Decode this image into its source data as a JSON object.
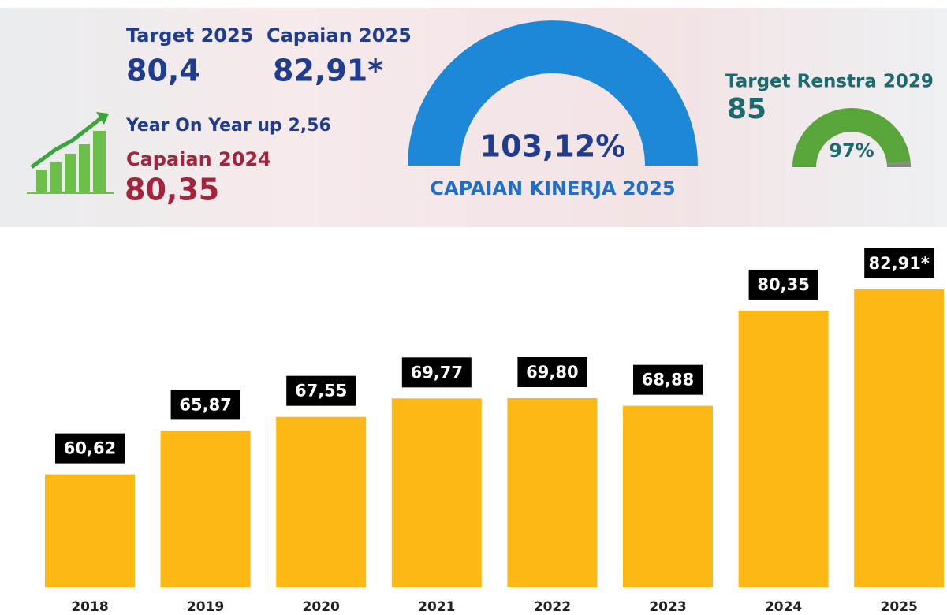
{
  "header": {
    "target_label": "Target 2025",
    "target_value": "80,4",
    "capaian_label": "Capaian 2025",
    "capaian_value": "82,91*",
    "yoy": "Year On Year up 2,56",
    "prev_label": "Capaian 2024",
    "prev_value": "80,35",
    "kinerja_value": "103,12%",
    "kinerja_label": "CAPAIAN KINERJA 2025",
    "renstra_label": "Target Renstra 2029",
    "renstra_value": "85"
  },
  "chart_data": [
    {
      "type": "bar",
      "categories": [
        "2018",
        "2019",
        "2020",
        "2021",
        "2022",
        "2023",
        "2024",
        "2025"
      ],
      "values": [
        60.62,
        65.87,
        67.55,
        69.77,
        69.8,
        68.88,
        80.35,
        82.91
      ],
      "value_labels": [
        "60,62",
        "65,87",
        "67,55",
        "69,77",
        "69,80",
        "68,88",
        "80,35",
        "82,91*"
      ],
      "color": "#fdb813",
      "label_background": "#000000",
      "ylim": [
        47,
        85
      ]
    },
    {
      "type": "gauge",
      "value": 97,
      "value_label": "97%",
      "lim": [
        0,
        100
      ],
      "color": "#58a53a",
      "track_color": "#8a8a8a"
    }
  ]
}
